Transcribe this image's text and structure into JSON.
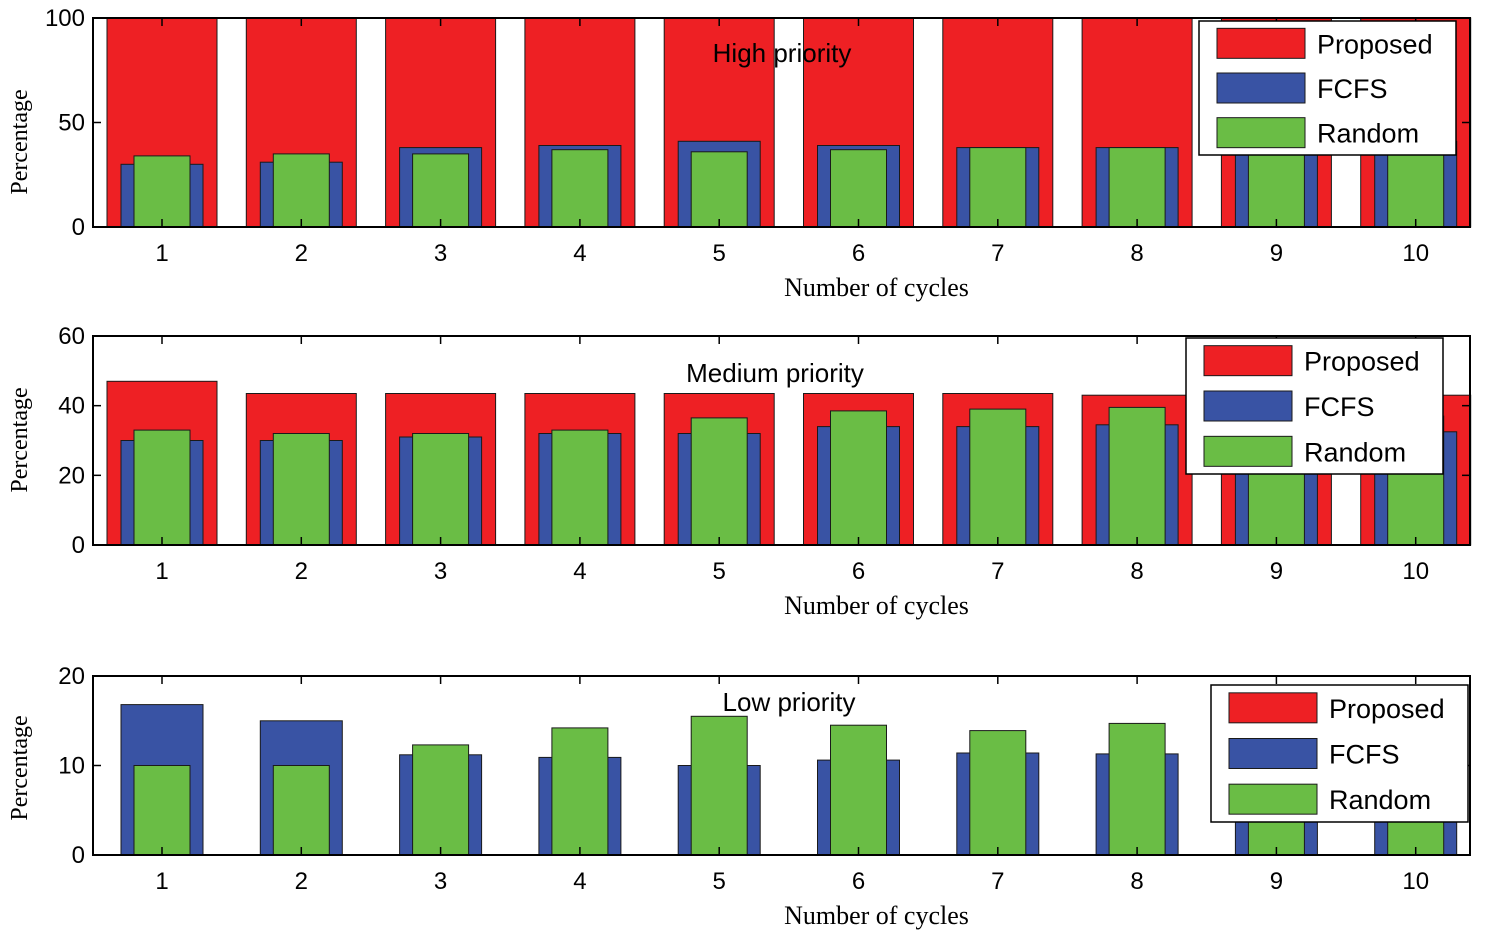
{
  "chart_data": [
    {
      "type": "bar",
      "title": "High priority",
      "xlabel": "Number of cycles",
      "ylabel": "Percentage",
      "ylim": [
        0,
        100
      ],
      "yticks": [
        0,
        50,
        100
      ],
      "categories": [
        "1",
        "2",
        "3",
        "4",
        "5",
        "6",
        "7",
        "8",
        "9",
        "10"
      ],
      "series": [
        {
          "name": "Proposed",
          "color": "#ee2024",
          "values": [
            100,
            100,
            100,
            100,
            100,
            100,
            100,
            100,
            100,
            100
          ]
        },
        {
          "name": "FCFS",
          "color": "#3953a4",
          "values": [
            30,
            31,
            38,
            39,
            41,
            39,
            38,
            38,
            39,
            41
          ]
        },
        {
          "name": "Random",
          "color": "#6abd45",
          "values": [
            34,
            35,
            35,
            37,
            36,
            37,
            38,
            38,
            36,
            38
          ]
        }
      ],
      "legend": {
        "position": "top-right",
        "entries": [
          "Proposed",
          "FCFS",
          "Random"
        ]
      },
      "grid": false
    },
    {
      "type": "bar",
      "title": "Medium priority",
      "xlabel": "Number of cycles",
      "ylabel": "Percentage",
      "ylim": [
        0,
        60
      ],
      "yticks": [
        0,
        20,
        40,
        60
      ],
      "categories": [
        "1",
        "2",
        "3",
        "4",
        "5",
        "6",
        "7",
        "8",
        "9",
        "10"
      ],
      "series": [
        {
          "name": "Proposed",
          "color": "#ee2024",
          "values": [
            47,
            43.5,
            43.5,
            43.5,
            43.5,
            43.5,
            43.5,
            43,
            43,
            43
          ]
        },
        {
          "name": "FCFS",
          "color": "#3953a4",
          "values": [
            30,
            30,
            31,
            32,
            32,
            34,
            34,
            34.5,
            33,
            32.5
          ]
        },
        {
          "name": "Random",
          "color": "#6abd45",
          "values": [
            33,
            32,
            32,
            33,
            36.5,
            38.5,
            39,
            39.5,
            35,
            37
          ]
        }
      ],
      "legend": {
        "position": "top-right",
        "entries": [
          "Proposed",
          "FCFS",
          "Random"
        ]
      },
      "grid": false
    },
    {
      "type": "bar",
      "title": "Low priority",
      "xlabel": "Number of cycles",
      "ylabel": "Percentage",
      "ylim": [
        0,
        20
      ],
      "yticks": [
        0,
        10,
        20
      ],
      "categories": [
        "1",
        "2",
        "3",
        "4",
        "5",
        "6",
        "7",
        "8",
        "9",
        "10"
      ],
      "series": [
        {
          "name": "Proposed",
          "color": "#ee2024",
          "values": [
            0,
            0,
            0,
            0,
            0,
            0,
            0,
            0,
            0,
            0
          ]
        },
        {
          "name": "FCFS",
          "color": "#3953a4",
          "values": [
            16.8,
            15,
            11.2,
            10.9,
            10,
            10.6,
            11.4,
            11.3,
            10.5,
            10.5
          ]
        },
        {
          "name": "Random",
          "color": "#6abd45",
          "values": [
            10,
            10,
            12.3,
            14.2,
            15.5,
            14.5,
            13.9,
            14.7,
            13,
            13
          ]
        }
      ],
      "legend": {
        "position": "top-right",
        "entries": [
          "Proposed",
          "FCFS",
          "Random"
        ]
      },
      "grid": false
    }
  ]
}
